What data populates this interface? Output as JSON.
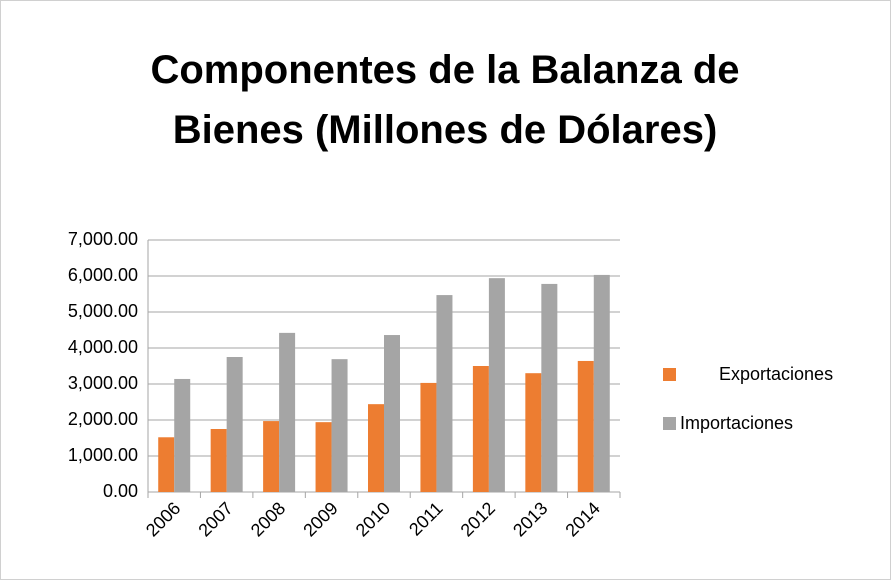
{
  "chart_data": {
    "type": "bar",
    "title": "Componentes de la Balanza de Bienes (Millones de Dólares)",
    "categories": [
      "2006",
      "2007",
      "2008",
      "2009",
      "2010",
      "2011",
      "2012",
      "2013",
      "2014"
    ],
    "series": [
      {
        "name": "Exportaciones",
        "color": "#ed7d31",
        "values": [
          1520,
          1750,
          1970,
          1940,
          2440,
          3030,
          3500,
          3300,
          3640
        ]
      },
      {
        "name": "Importaciones",
        "color": "#a5a5a5",
        "values": [
          3140,
          3750,
          4420,
          3690,
          4360,
          5470,
          5940,
          5780,
          6030
        ]
      }
    ],
    "ylim": [
      0,
      7000
    ],
    "yticks": [
      {
        "value": 0,
        "label": "0.00"
      },
      {
        "value": 1000,
        "label": "1,000.00"
      },
      {
        "value": 2000,
        "label": "2,000.00"
      },
      {
        "value": 3000,
        "label": "3,000.00"
      },
      {
        "value": 4000,
        "label": "4,000.00"
      },
      {
        "value": 5000,
        "label": "5,000.00"
      },
      {
        "value": 6000,
        "label": "6,000.00"
      },
      {
        "value": 7000,
        "label": "7,000.00"
      }
    ],
    "grid": true,
    "legend": "right"
  }
}
